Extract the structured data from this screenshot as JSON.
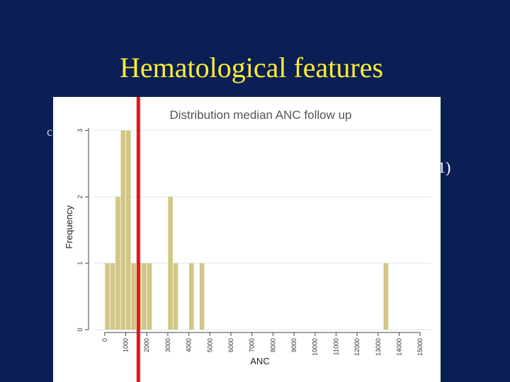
{
  "slide": {
    "title": "Hematological features",
    "bg_text_left": "c",
    "bg_text_right": "1)"
  },
  "colors": {
    "background": "#0b1f55",
    "title": "#ffee33",
    "bars": "#d2c686",
    "marker": "#e8151b",
    "grid": "#e8eef4",
    "plot_bg": "#ffffff"
  },
  "chart_data": {
    "type": "bar",
    "title": "Distribution median ANC follow up",
    "xlabel": "ANC",
    "ylabel": "Frequency",
    "xlim": [
      -500,
      15500
    ],
    "ylim": [
      0,
      3.1
    ],
    "bin_width": 250,
    "x_ticks": [
      0,
      1000,
      2000,
      3000,
      4000,
      5000,
      6000,
      7000,
      8000,
      9000,
      10000,
      11000,
      12000,
      13000,
      14000,
      15000
    ],
    "x_tick_labels": [
      "0",
      "1000",
      "2000",
      "3000",
      "4000",
      "5000",
      "6000",
      "7000",
      "8000",
      "9000",
      "10000",
      "11000",
      "12000",
      "13000",
      "14000",
      "15000"
    ],
    "y_ticks": [
      0,
      1,
      2,
      3
    ],
    "y_tick_labels": [
      "0",
      "1",
      "2",
      "3"
    ],
    "bins": [
      {
        "x": 0,
        "value": 1
      },
      {
        "x": 250,
        "value": 1
      },
      {
        "x": 500,
        "value": 2
      },
      {
        "x": 750,
        "value": 3
      },
      {
        "x": 1000,
        "value": 3
      },
      {
        "x": 1250,
        "value": 1
      },
      {
        "x": 1500,
        "value": 1
      },
      {
        "x": 1750,
        "value": 1
      },
      {
        "x": 2000,
        "value": 1
      },
      {
        "x": 3000,
        "value": 2
      },
      {
        "x": 3250,
        "value": 1
      },
      {
        "x": 4000,
        "value": 1
      },
      {
        "x": 4500,
        "value": 1
      },
      {
        "x": 13250,
        "value": 1
      }
    ],
    "reference_line": {
      "x": 1600,
      "color": "#e8151b"
    },
    "grid": true,
    "legend": "none"
  }
}
